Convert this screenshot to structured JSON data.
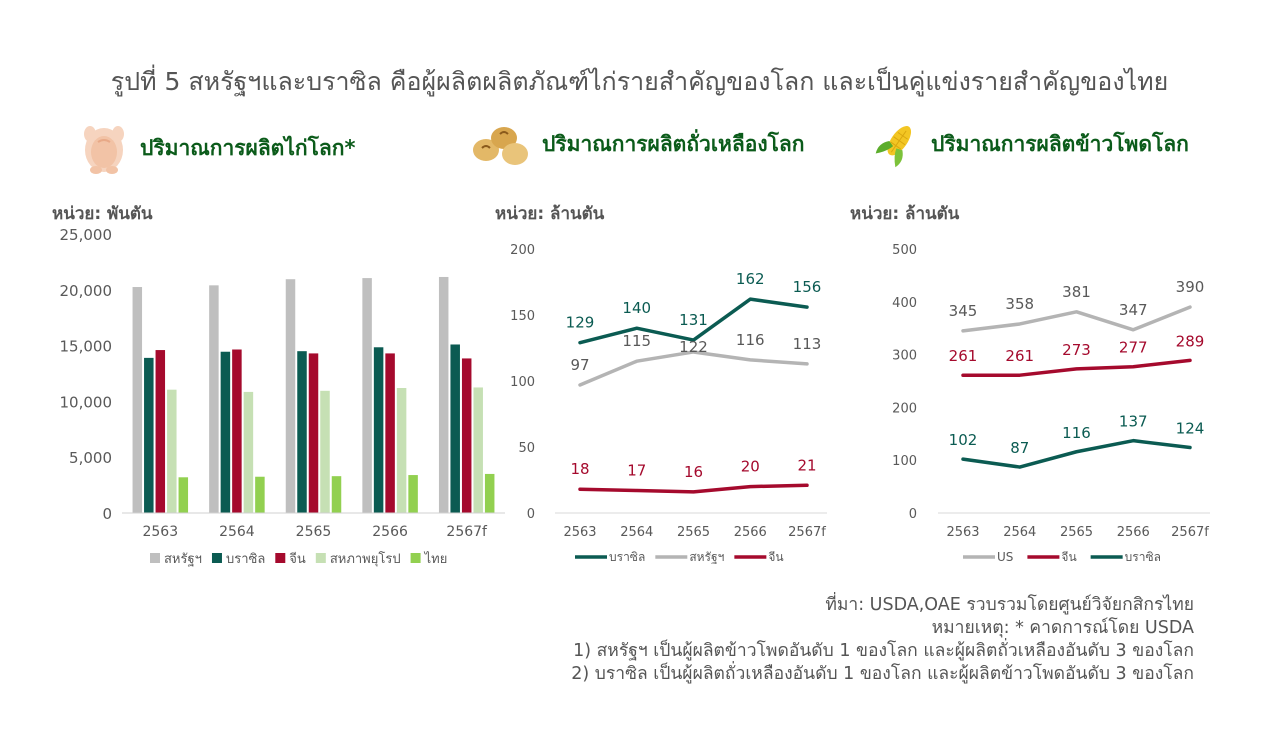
{
  "title": "รูปที่ 5  สหรัฐฯและบราซิล คือผู้ผลิตผลิตภัณฑ์ไก่รายสำคัญของโลก และเป็นคู่แข่งรายสำคัญของไทย",
  "panels": [
    {
      "label": "ปริมาณการผลิตไก่โลก*",
      "icon": "chicken-icon",
      "unit": "หน่วย: พันตัน"
    },
    {
      "label": "ปริมาณการผลิตถั่วเหลืองโลก",
      "icon": "soybean-icon",
      "unit": "หน่วย: ล้านตัน"
    },
    {
      "label": "ปริมาณการผลิตข้าวโพดโลก",
      "icon": "corn-icon",
      "unit": "หน่วย: ล้านตัน"
    }
  ],
  "footer": {
    "source": "ที่มา: USDA,OAE รวบรวมโดยศูนย์วิจัยกสิกรไทย",
    "remark": "หมายเหตุ: * คาดการณ์โดย USDA",
    "notes": [
      "1)  สหรัฐฯ เป็นผู้ผลิตข้าวโพดอันดับ 1 ของโลก และผู้ผลิตถั่วเหลืองอันดับ 3 ของโลก",
      "2)  บราซิล เป็นผู้ผลิตถั่วเหลืองอันดับ 1 ของโลก และผู้ผลิตข้าวโพดอันดับ 3 ของโลก"
    ]
  },
  "chart_data": [
    {
      "type": "bar",
      "categories": [
        "2563",
        "2564",
        "2565",
        "2566",
        "2567f"
      ],
      "ylim": [
        0,
        25000
      ],
      "yticks": [
        0,
        5000,
        10000,
        15000,
        20000,
        25000
      ],
      "ytick_labels": [
        "0",
        "5,000",
        "10,000",
        "15,000",
        "20,000",
        "25,000"
      ],
      "legend": "bottom",
      "series": [
        {
          "name": "สหรัฐฯ",
          "color": "#bfbfbf",
          "values": [
            20250,
            20400,
            20950,
            21050,
            21150
          ]
        },
        {
          "name": "บราซิล",
          "color": "#0b5b52",
          "values": [
            13900,
            14450,
            14500,
            14850,
            15100
          ]
        },
        {
          "name": "จีน",
          "color": "#a50a2d",
          "values": [
            14600,
            14650,
            14300,
            14300,
            13850
          ]
        },
        {
          "name": "สหภาพยุโรป",
          "color": "#c6e0b4",
          "values": [
            11050,
            10850,
            10950,
            11200,
            11250
          ]
        },
        {
          "name": "ไทย",
          "color": "#92d050",
          "values": [
            3200,
            3250,
            3300,
            3400,
            3500
          ]
        }
      ]
    },
    {
      "type": "line",
      "categories": [
        "2563",
        "2564",
        "2565",
        "2566",
        "2567f"
      ],
      "ylim": [
        0,
        200
      ],
      "yticks": [
        0,
        50,
        100,
        150,
        200
      ],
      "legend": "bottom",
      "series": [
        {
          "name": "บราซิล",
          "color": "#0b5b52",
          "values": [
            129,
            140,
            131,
            162,
            156
          ]
        },
        {
          "name": "สหรัฐฯ",
          "color": "#b4b4b4",
          "values": [
            97,
            115,
            122,
            116,
            113
          ]
        },
        {
          "name": "จีน",
          "color": "#a50a2d",
          "values": [
            18,
            17,
            16,
            20,
            21
          ]
        }
      ]
    },
    {
      "type": "line",
      "categories": [
        "2563",
        "2564",
        "2565",
        "2566",
        "2567f"
      ],
      "ylim": [
        0,
        500
      ],
      "yticks": [
        0,
        100,
        200,
        300,
        400,
        500
      ],
      "legend": "bottom",
      "series": [
        {
          "name": "US",
          "color": "#b4b4b4",
          "values": [
            345,
            358,
            381,
            347,
            390
          ]
        },
        {
          "name": "จีน",
          "color": "#a50a2d",
          "values": [
            261,
            261,
            273,
            277,
            289
          ]
        },
        {
          "name": "บราซิล",
          "color": "#0b5b52",
          "values": [
            102,
            87,
            116,
            137,
            124
          ]
        }
      ]
    }
  ]
}
